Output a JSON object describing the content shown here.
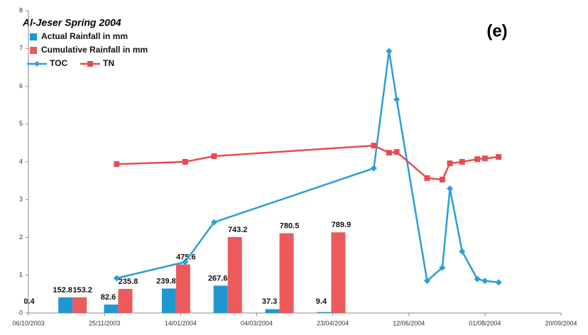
{
  "chart_data": {
    "type": "combo",
    "title": "Al-Jeser Spring 2004",
    "annotation": "(e)",
    "xlim": [
      "06/10/2003",
      "20/09/2004"
    ],
    "xticks": [
      "06/10/2003",
      "25/11/2003",
      "14/01/2004",
      "04/03/2004",
      "23/04/2004",
      "12/06/2004",
      "01/08/2004",
      "20/09/2004"
    ],
    "ylim": [
      0,
      8
    ],
    "yticks": [
      0,
      1,
      2,
      3,
      4,
      5,
      6,
      7,
      8
    ],
    "y2lim": [
      0,
      2960
    ],
    "bar_x": [
      "13/10/2003",
      "04/11/2003",
      "04/12/2003",
      "11/01/2004",
      "14/02/2004",
      "19/03/2004",
      "22/04/2004"
    ],
    "bar_series": [
      {
        "name": "Actual Rainfall in mm",
        "color": "#1f97cf",
        "axis": "y2",
        "values": [
          0.4,
          152.8,
          82.6,
          239.8,
          267.6,
          37.3,
          9.4
        ]
      },
      {
        "name": "Cumulative Rainfall in mm",
        "color": "#ec5a5c",
        "axis": "y2",
        "values": [
          null,
          153.2,
          235.8,
          475.6,
          743.2,
          780.5,
          789.9
        ]
      }
    ],
    "x": [
      "03/12/2003",
      "17/01/2004",
      "05/02/2004",
      "20/05/2004",
      "30/05/2004",
      "04/06/2004",
      "24/06/2004",
      "04/07/2004",
      "09/07/2004",
      "17/07/2004",
      "27/07/2004",
      "01/08/2004",
      "10/08/2004"
    ],
    "series": [
      {
        "name": "TOC",
        "color": "#2a9ed8",
        "marker": "diamond",
        "values": [
          0.92,
          1.35,
          2.4,
          3.83,
          6.93,
          5.65,
          0.85,
          1.2,
          3.29,
          1.63,
          0.9,
          0.85,
          0.81
        ]
      },
      {
        "name": "TN",
        "color": "#e84c4f",
        "marker": "square",
        "values": [
          3.94,
          4.0,
          4.15,
          4.43,
          4.24,
          4.26,
          3.57,
          3.53,
          3.96,
          4.0,
          4.07,
          4.09,
          4.13
        ]
      }
    ]
  }
}
